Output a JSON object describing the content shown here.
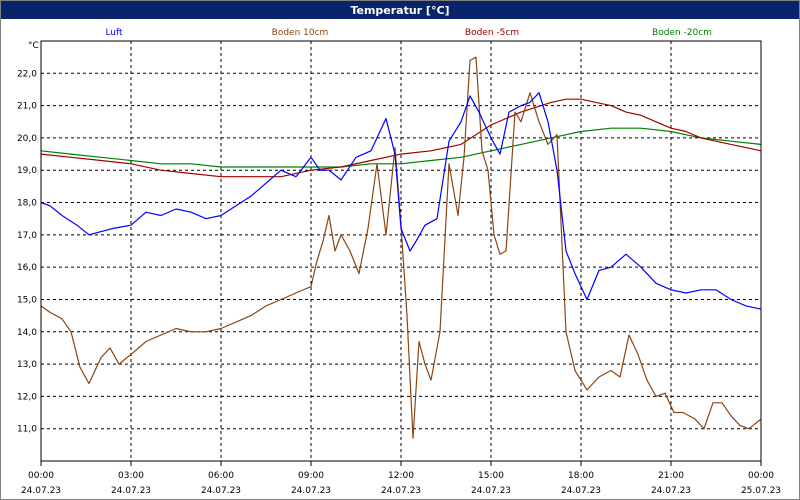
{
  "window": {
    "title": "Temperatur [°C]"
  },
  "chart_data": {
    "type": "line",
    "title": "Temperatur [°C]",
    "ylabel": "°C",
    "ylim": [
      10.0,
      23.0
    ],
    "yticks": [
      "22,0",
      "21,0",
      "20,0",
      "19,0",
      "18,0",
      "17,0",
      "16,0",
      "15,0",
      "14,0",
      "13,0",
      "12,0",
      "11,0"
    ],
    "xlim": [
      0,
      24
    ],
    "xticks": [
      {
        "time": "00:00",
        "date": "24.07.23"
      },
      {
        "time": "03:00",
        "date": "24.07.23"
      },
      {
        "time": "06:00",
        "date": "24.07.23"
      },
      {
        "time": "09:00",
        "date": "24.07.23"
      },
      {
        "time": "12:00",
        "date": "24.07.23"
      },
      {
        "time": "15:00",
        "date": "24.07.23"
      },
      {
        "time": "18:00",
        "date": "24.07.23"
      },
      {
        "time": "21:00",
        "date": "24.07.23"
      },
      {
        "time": "00:00",
        "date": "25.07.23"
      }
    ],
    "grid": true,
    "legend_position": "top",
    "series": [
      {
        "name": "Luft",
        "color": "#0000ff",
        "x": [
          0,
          0.3,
          0.7,
          1.2,
          1.6,
          2,
          2.4,
          3,
          3.5,
          4,
          4.5,
          5,
          5.5,
          6,
          6.5,
          7,
          7.5,
          8,
          8.5,
          9,
          9.3,
          9.6,
          10,
          10.5,
          11,
          11.5,
          11.8,
          12,
          12.3,
          12.5,
          12.8,
          13.2,
          13.6,
          14,
          14.3,
          14.6,
          15,
          15.3,
          15.6,
          16,
          16.3,
          16.6,
          16.9,
          17.2,
          17.5,
          17.8,
          18.2,
          18.6,
          19,
          19.5,
          20,
          20.5,
          21,
          21.5,
          22,
          22.5,
          23,
          23.5,
          24
        ],
        "y": [
          18.0,
          17.9,
          17.6,
          17.3,
          17.0,
          17.1,
          17.2,
          17.3,
          17.7,
          17.6,
          17.8,
          17.7,
          17.5,
          17.6,
          17.9,
          18.2,
          18.6,
          19.0,
          18.8,
          19.4,
          19.0,
          19.0,
          18.7,
          19.4,
          19.6,
          20.6,
          19.5,
          17.2,
          16.5,
          16.8,
          17.3,
          17.5,
          19.9,
          20.5,
          21.3,
          20.8,
          20.0,
          19.5,
          20.8,
          21.0,
          21.1,
          21.4,
          20.5,
          19.0,
          16.5,
          15.8,
          15.0,
          15.9,
          16.0,
          16.4,
          16.0,
          15.5,
          15.3,
          15.2,
          15.3,
          15.3,
          15.0,
          14.8,
          14.7
        ]
      },
      {
        "name": "Boden 10cm",
        "color": "#8b4513",
        "x": [
          0,
          0.3,
          0.7,
          1.0,
          1.3,
          1.6,
          2,
          2.3,
          2.6,
          3,
          3.5,
          4,
          4.5,
          5,
          5.5,
          6,
          6.5,
          7,
          7.5,
          8,
          8.5,
          9,
          9.2,
          9.4,
          9.6,
          9.8,
          10,
          10.3,
          10.6,
          10.9,
          11.2,
          11.5,
          11.8,
          12,
          12.2,
          12.4,
          12.6,
          12.8,
          13.0,
          13.3,
          13.6,
          13.9,
          14.1,
          14.3,
          14.5,
          14.7,
          14.9,
          15.1,
          15.3,
          15.5,
          15.8,
          16.0,
          16.3,
          16.6,
          16.9,
          17.2,
          17.5,
          17.8,
          18.2,
          18.6,
          19,
          19.3,
          19.6,
          19.9,
          20.2,
          20.5,
          20.8,
          21.1,
          21.4,
          21.8,
          22.1,
          22.4,
          22.7,
          23.0,
          23.3,
          23.6,
          24
        ],
        "y": [
          14.8,
          14.6,
          14.4,
          14.0,
          12.9,
          12.4,
          13.2,
          13.5,
          13.0,
          13.3,
          13.7,
          13.9,
          14.1,
          14.0,
          14.0,
          14.1,
          14.3,
          14.5,
          14.8,
          15.0,
          15.2,
          15.4,
          16.2,
          16.8,
          17.6,
          16.5,
          17.0,
          16.5,
          15.8,
          17.2,
          19.2,
          17.0,
          19.7,
          17.3,
          14.5,
          10.7,
          13.7,
          13.0,
          12.5,
          14.0,
          19.2,
          17.6,
          19.4,
          22.4,
          22.5,
          19.6,
          19.0,
          17.0,
          16.4,
          16.5,
          20.8,
          20.5,
          21.4,
          20.5,
          19.8,
          20.1,
          14.0,
          12.8,
          12.2,
          12.6,
          12.8,
          12.6,
          13.9,
          13.3,
          12.5,
          12.0,
          12.1,
          11.5,
          11.5,
          11.3,
          11.0,
          11.8,
          11.8,
          11.4,
          11.1,
          11.0,
          11.3
        ]
      },
      {
        "name": "Boden -5cm",
        "color": "#a00000",
        "x": [
          0,
          1,
          2,
          3,
          4,
          5,
          6,
          7,
          8,
          9,
          10,
          11,
          12,
          13,
          14,
          15,
          16,
          17,
          17.5,
          18,
          18.5,
          19,
          19.5,
          20,
          20.5,
          21,
          21.5,
          22,
          22.5,
          23,
          23.5,
          24
        ],
        "y": [
          19.5,
          19.4,
          19.3,
          19.2,
          19.0,
          18.9,
          18.8,
          18.8,
          18.8,
          19.0,
          19.1,
          19.3,
          19.5,
          19.6,
          19.8,
          20.4,
          20.8,
          21.1,
          21.2,
          21.2,
          21.1,
          21.0,
          20.8,
          20.7,
          20.5,
          20.3,
          20.2,
          20.0,
          19.9,
          19.8,
          19.7,
          19.6
        ]
      },
      {
        "name": "Boden -20cm",
        "color": "#008000",
        "x": [
          0,
          1,
          2,
          3,
          4,
          5,
          6,
          7,
          8,
          9,
          10,
          11,
          12,
          13,
          14,
          15,
          16,
          17,
          18,
          19,
          20,
          21,
          22,
          23,
          24
        ],
        "y": [
          19.6,
          19.5,
          19.4,
          19.3,
          19.2,
          19.2,
          19.1,
          19.1,
          19.1,
          19.1,
          19.1,
          19.2,
          19.2,
          19.3,
          19.4,
          19.6,
          19.8,
          20.0,
          20.2,
          20.3,
          20.3,
          20.2,
          20.0,
          19.9,
          19.8
        ]
      }
    ]
  }
}
